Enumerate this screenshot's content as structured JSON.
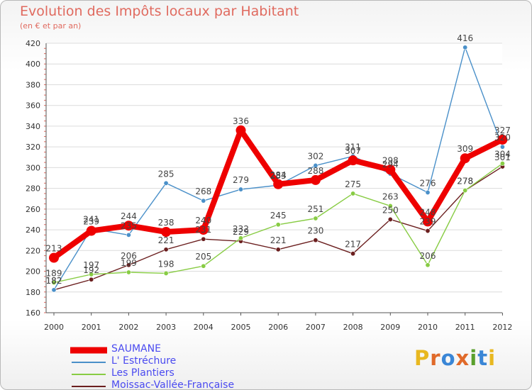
{
  "chart_data": {
    "type": "line",
    "title": "Evolution des Impôts locaux par Habitant",
    "subtitle": "(en € et par an)",
    "xlabel": "",
    "ylabel": "",
    "ylim": [
      160,
      420
    ],
    "yticks": [
      160,
      180,
      200,
      220,
      240,
      260,
      280,
      300,
      320,
      340,
      360,
      380,
      400,
      420
    ],
    "grid": "horizontal",
    "x": [
      "2000",
      "2001",
      "2002",
      "2003",
      "2004",
      "2005",
      "2006",
      "2007",
      "2008",
      "2009",
      "2010",
      "2011",
      "2012"
    ],
    "series": [
      {
        "name": "SAUMANE",
        "color": "#ee0000",
        "values": [
          213,
          239,
          244,
          238,
          240,
          336,
          284,
          288,
          307,
          298,
          248,
          309,
          327
        ],
        "labels": [
          "213",
          "239",
          "244",
          "238",
          "240",
          "336",
          "284",
          "288",
          "307",
          "298",
          "248",
          "309",
          "327"
        ]
      },
      {
        "name": "L' Estréchure",
        "color": "#4a90c9",
        "values": [
          182,
          241,
          235,
          285,
          268,
          279,
          283,
          302,
          311,
          294,
          276,
          416,
          320
        ],
        "labels": [
          "182",
          "241",
          "235",
          "285",
          "268",
          "279",
          "283",
          "302",
          "311",
          "294",
          "276",
          "416",
          "320"
        ]
      },
      {
        "name": "Les Plantiers",
        "color": "#88cc44",
        "values": [
          189,
          197,
          199,
          198,
          205,
          232,
          245,
          251,
          275,
          263,
          206,
          278,
          304
        ],
        "labels": [
          "189",
          "197",
          "199",
          "198",
          "205",
          "232",
          "245",
          "251",
          "275",
          "263",
          "206",
          "278",
          "304"
        ]
      },
      {
        "name": "Moissac-Vallée-Française",
        "color": "#6b1f1f",
        "values": [
          182,
          192,
          206,
          221,
          231,
          229,
          221,
          230,
          217,
          250,
          239,
          278,
          301
        ],
        "labels": [
          "182",
          "192",
          "206",
          "221",
          "231",
          "229",
          "221",
          "230",
          "217",
          "250",
          "239",
          "278",
          "301"
        ]
      }
    ]
  },
  "legend": [
    {
      "label": "SAUMANE",
      "color": "#ee0000"
    },
    {
      "label": "L' Estréchure",
      "color": "#4a90c9"
    },
    {
      "label": "Les Plantiers",
      "color": "#88cc44"
    },
    {
      "label": "Moissac-Vallée-Française",
      "color": "#6b1f1f"
    }
  ],
  "brand": {
    "letters": [
      "P",
      "r",
      "o",
      "x",
      "i",
      "t",
      "i"
    ],
    "colors": [
      "#e8b820",
      "#e06a2a",
      "#3a86d6",
      "#e06a2a",
      "#5aa02c",
      "#3a86d6",
      "#e8b820"
    ]
  }
}
